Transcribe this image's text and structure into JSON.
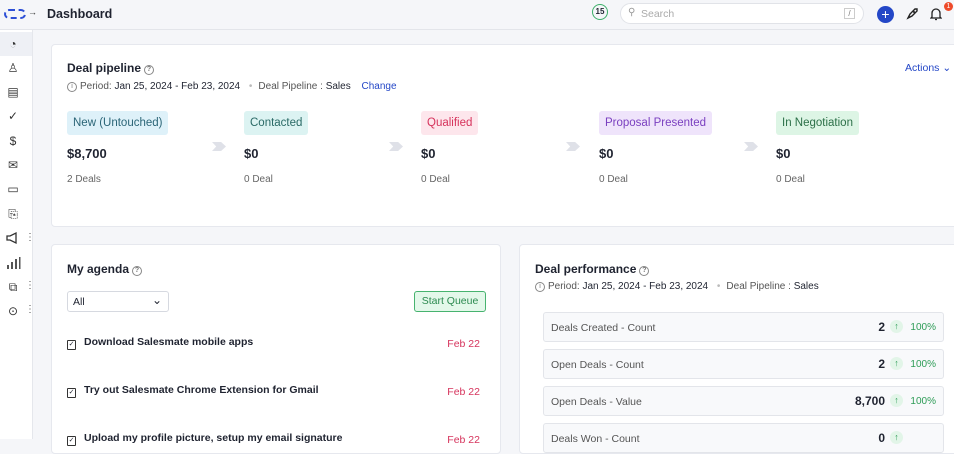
{
  "header": {
    "title": "Dashboard",
    "counter": "15",
    "search_placeholder": "Search",
    "search_shortcut": "/",
    "notification_count": "1"
  },
  "sidebar": {
    "items": [
      "dashboard-icon",
      "contacts-icon",
      "companies-icon",
      "tasks-icon",
      "deals-icon",
      "email-icon",
      "inbox-icon",
      "products-icon",
      "campaigns-icon",
      "reports-icon",
      "conversations-icon",
      "more-icon"
    ]
  },
  "pipeline": {
    "title": "Deal pipeline",
    "period_label": "Period:",
    "period": "Jan 25, 2024 - Feb 23, 2024",
    "pipeline_label": "Deal Pipeline :",
    "pipeline": "Sales",
    "change": "Change",
    "actions": "Actions",
    "stages": [
      {
        "name": "New (Untouched)",
        "value": "$8,700",
        "count": "2 Deals",
        "bg": "#def1f9",
        "fg": "#2b6577"
      },
      {
        "name": "Contacted",
        "value": "$0",
        "count": "0 Deal",
        "bg": "#dcf3f2",
        "fg": "#2a6a66"
      },
      {
        "name": "Qualified",
        "value": "$0",
        "count": "0 Deal",
        "bg": "#fde6ec",
        "fg": "#d6335c"
      },
      {
        "name": "Proposal Presented",
        "value": "$0",
        "count": "0 Deal",
        "bg": "#efe4fb",
        "fg": "#7a3fc0"
      },
      {
        "name": "In Negotiation",
        "value": "$0",
        "count": "0 Deal",
        "bg": "#ddf5e5",
        "fg": "#2c7048"
      }
    ]
  },
  "agenda": {
    "title": "My agenda",
    "filter": "All",
    "start_queue": "Start Queue",
    "tasks": [
      {
        "title": "Download Salesmate mobile apps",
        "due": "Feb 22"
      },
      {
        "title": "Try out Salesmate Chrome Extension for Gmail",
        "due": "Feb 22"
      },
      {
        "title": "Upload my profile picture, setup my email signature",
        "due": "Feb 22"
      }
    ]
  },
  "performance": {
    "title": "Deal performance",
    "period_label": "Period:",
    "period": "Jan 25, 2024 - Feb 23, 2024",
    "pipeline_label": "Deal Pipeline :",
    "pipeline": "Sales",
    "rows": [
      {
        "label": "Deals Created - Count",
        "value": "2",
        "change": "100%"
      },
      {
        "label": "Open Deals - Count",
        "value": "2",
        "change": "100%"
      },
      {
        "label": "Open Deals - Value",
        "value": "8,700",
        "change": "100%"
      },
      {
        "label": "Deals Won - Count",
        "value": "0",
        "change": ""
      }
    ]
  }
}
